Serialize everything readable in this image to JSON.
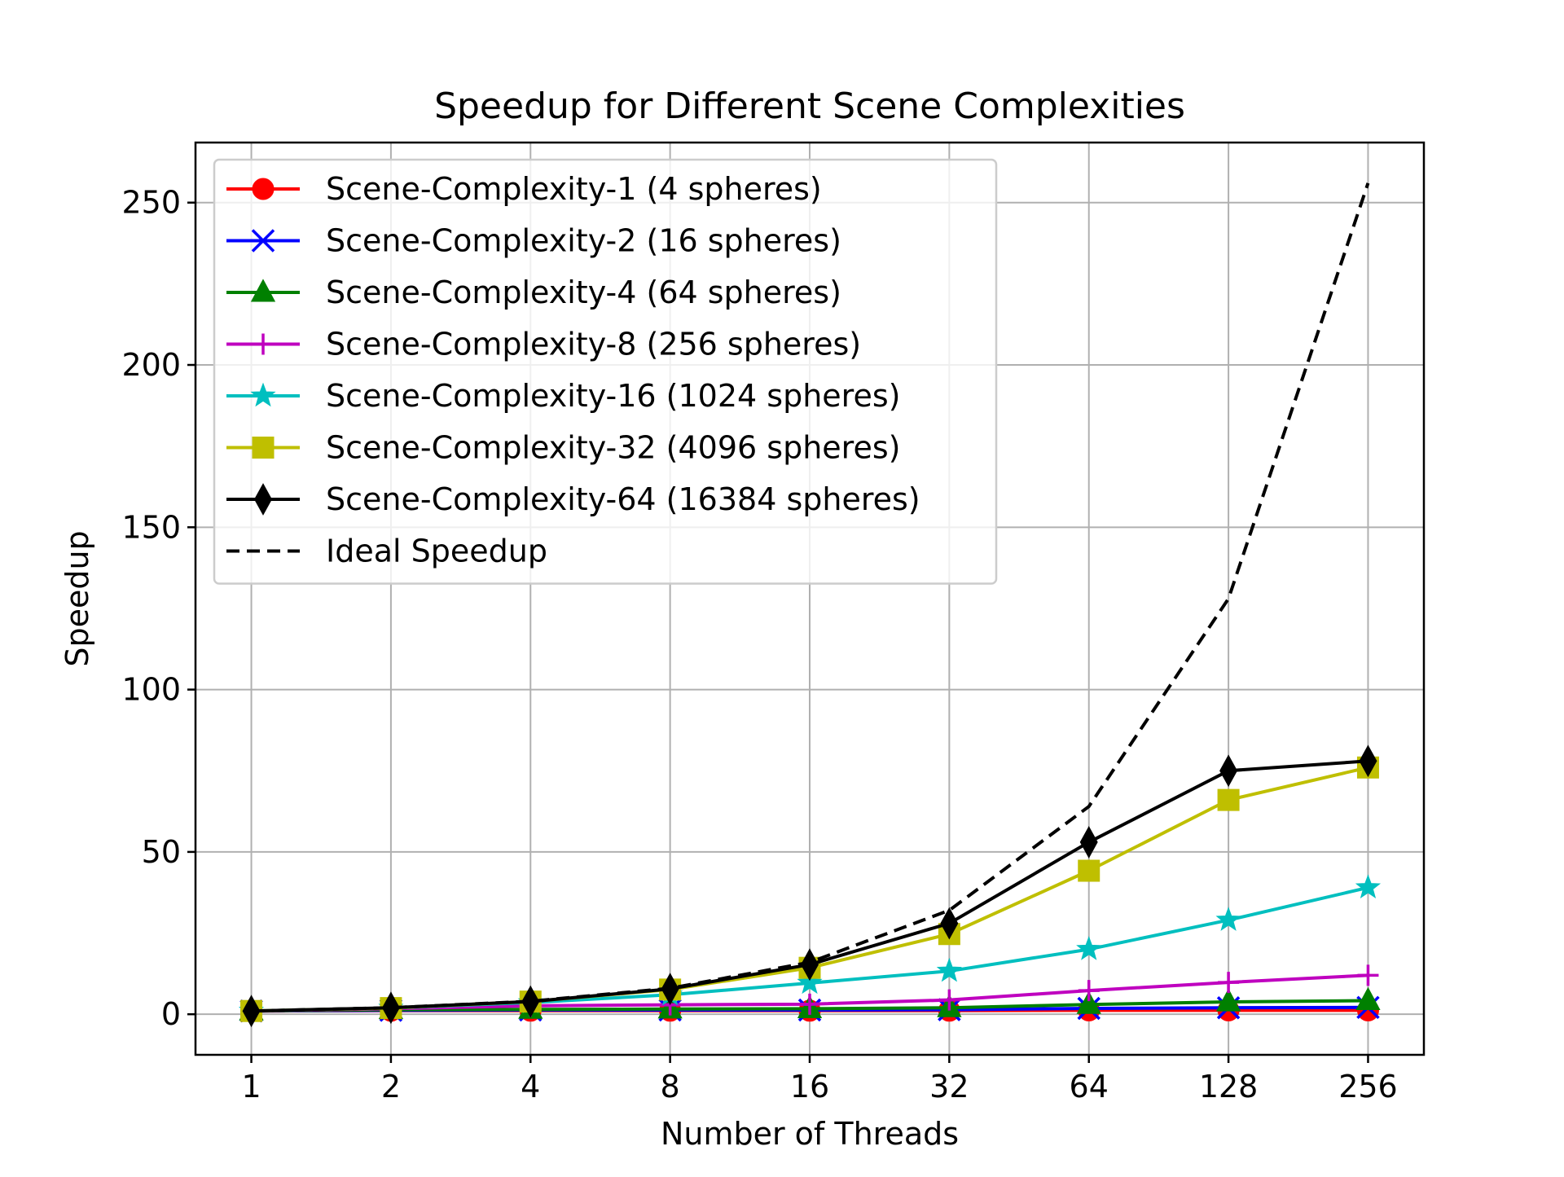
{
  "chart_data": {
    "type": "line",
    "title": "Speedup for Different Scene Complexities",
    "xlabel": "Number of Threads",
    "ylabel": "Speedup",
    "x_scale": "log2",
    "x": [
      1,
      2,
      4,
      8,
      16,
      32,
      64,
      128,
      256
    ],
    "x_tick_labels": [
      "1",
      "2",
      "4",
      "8",
      "16",
      "32",
      "64",
      "128",
      "256"
    ],
    "ylim": [
      -12.5,
      268.5
    ],
    "y_ticks": [
      0,
      50,
      100,
      150,
      200,
      250
    ],
    "y_tick_labels": [
      "0",
      "50",
      "100",
      "150",
      "200",
      "250"
    ],
    "grid": true,
    "legend_position": "top-left",
    "series": [
      {
        "name": "Scene-Complexity-1 (4 spheres)",
        "color": "#ff0000",
        "marker": "circle",
        "dash": "solid",
        "values": [
          1.0,
          1.1,
          1.1,
          1.1,
          1.1,
          1.1,
          1.2,
          1.2,
          1.2
        ]
      },
      {
        "name": "Scene-Complexity-2 (16 spheres)",
        "color": "#0000ff",
        "marker": "x",
        "dash": "solid",
        "values": [
          1.0,
          1.2,
          1.3,
          1.3,
          1.3,
          1.4,
          1.8,
          2.0,
          2.1
        ]
      },
      {
        "name": "Scene-Complexity-4 (64 spheres)",
        "color": "#008000",
        "marker": "triangle",
        "dash": "solid",
        "values": [
          1.0,
          1.4,
          1.5,
          1.6,
          1.7,
          2.0,
          3.0,
          3.8,
          4.2
        ]
      },
      {
        "name": "Scene-Complexity-8 (256 spheres)",
        "color": "#bf00bf",
        "marker": "plus",
        "dash": "solid",
        "values": [
          1.0,
          1.7,
          2.6,
          2.9,
          3.1,
          4.4,
          7.3,
          9.8,
          12.0
        ]
      },
      {
        "name": "Scene-Complexity-16 (1024 spheres)",
        "color": "#00bfbf",
        "marker": "star",
        "dash": "solid",
        "values": [
          1.0,
          1.9,
          3.6,
          6.0,
          9.6,
          13.3,
          20.0,
          29.0,
          39.0
        ]
      },
      {
        "name": "Scene-Complexity-32 (4096 spheres)",
        "color": "#bfbf00",
        "marker": "square",
        "dash": "solid",
        "values": [
          1.0,
          1.9,
          3.9,
          7.6,
          14.3,
          24.7,
          44.2,
          66.0,
          76.0
        ]
      },
      {
        "name": "Scene-Complexity-64 (16384 spheres)",
        "color": "#000000",
        "marker": "thin-diamond",
        "dash": "solid",
        "values": [
          1.0,
          2.0,
          3.9,
          7.8,
          15.3,
          28.0,
          53.0,
          75.0,
          78.0
        ]
      },
      {
        "name": "Ideal Speedup",
        "color": "#000000",
        "marker": "none",
        "dash": "dashed",
        "values": [
          1,
          2,
          4,
          8,
          16,
          32,
          64,
          128,
          256
        ]
      }
    ]
  }
}
